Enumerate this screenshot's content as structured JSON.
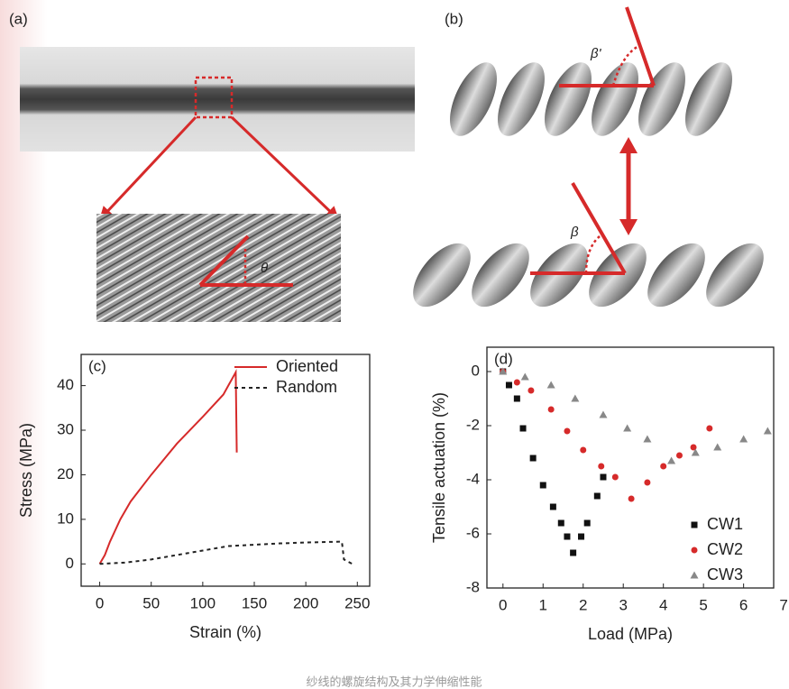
{
  "panels": {
    "a": "(a)",
    "b": "(b)"
  },
  "annotations": {
    "theta": "θ",
    "beta": "β",
    "beta_prime": "β'"
  },
  "caption": "纱线的螺旋结构及其力学伸缩性能",
  "chart_data": [
    {
      "type": "line",
      "label": "(c)",
      "x_label": "Strain (%)",
      "y_label": "Stress (MPa)",
      "xlim": [
        -18,
        262
      ],
      "ylim": [
        -5,
        47
      ],
      "xticks": [
        0,
        50,
        100,
        150,
        200,
        250
      ],
      "yticks": [
        0,
        10,
        20,
        30,
        40
      ],
      "legend": "upper right",
      "series": [
        {
          "name": "Oriented",
          "color": "#d62a2a",
          "style": "solid",
          "x": [
            0,
            5,
            10,
            20,
            30,
            50,
            75,
            100,
            120,
            132,
            133
          ],
          "values": [
            0,
            2,
            5,
            10,
            14,
            20,
            27,
            33,
            38,
            43,
            25
          ]
        },
        {
          "name": "Random",
          "color": "#222222",
          "style": "dashed",
          "x": [
            0,
            25,
            50,
            75,
            100,
            125,
            150,
            175,
            200,
            235,
            237,
            245
          ],
          "values": [
            0,
            0.3,
            1,
            2,
            3,
            4,
            4.3,
            4.6,
            4.8,
            5,
            1,
            0
          ]
        }
      ]
    },
    {
      "type": "scatter",
      "label": "(d)",
      "x_label": "Load (MPa)",
      "y_label": "Tensile actuation (%)",
      "xlim": [
        -0.4,
        6.75
      ],
      "ylim": [
        -8,
        0.9
      ],
      "xticks": [
        0,
        1,
        2,
        3,
        4,
        5,
        6,
        7
      ],
      "yticks": [
        0,
        -2,
        -4,
        -6,
        -8
      ],
      "legend": "lower right",
      "series": [
        {
          "name": "CW1",
          "color": "#111111",
          "marker": "square",
          "x": [
            0,
            0.15,
            0.35,
            0.5,
            0.75,
            1,
            1.25,
            1.45,
            1.6,
            1.75,
            1.95,
            2.1,
            2.35,
            2.5
          ],
          "values": [
            0,
            -0.5,
            -1,
            -2.1,
            -3.2,
            -4.2,
            -5,
            -5.6,
            -6.1,
            -6.7,
            -6.1,
            -5.6,
            -4.6,
            -3.9
          ]
        },
        {
          "name": "CW2",
          "color": "#d62a2a",
          "marker": "circle",
          "x": [
            0,
            0.35,
            0.7,
            1.2,
            1.6,
            2,
            2.45,
            2.8,
            3.2,
            3.6,
            4,
            4.4,
            4.75,
            5.15
          ],
          "values": [
            0,
            -0.4,
            -0.7,
            -1.4,
            -2.2,
            -2.9,
            -3.5,
            -3.9,
            -4.7,
            -4.1,
            -3.5,
            -3.1,
            -2.8,
            -2.1
          ]
        },
        {
          "name": "CW3",
          "color": "#888888",
          "marker": "triangle",
          "x": [
            0,
            0.55,
            1.2,
            1.8,
            2.5,
            3.1,
            3.6,
            4.2,
            4.8,
            5.35,
            6,
            6.6
          ],
          "values": [
            0,
            -0.2,
            -0.5,
            -1,
            -1.6,
            -2.1,
            -2.5,
            -3.3,
            -3,
            -2.8,
            -2.5,
            -2.2
          ]
        }
      ]
    }
  ]
}
